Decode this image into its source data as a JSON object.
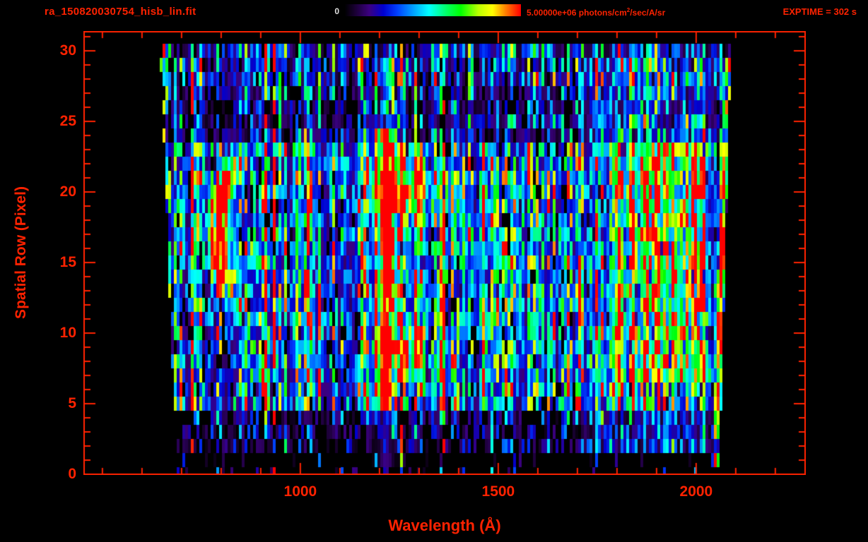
{
  "header": {
    "filename": "ra_150820030754_hisb_lin.fit",
    "colorbar_min": "0",
    "colorbar_max": {
      "prefix": "5.00000e+06 photons/cm",
      "sup": "2",
      "suffix": "/sec/A/sr"
    },
    "exptime": "EXPTIME = 302 s"
  },
  "colors": {
    "accent_red": "#ff2200",
    "text_white": "#e0e0e0",
    "background": "#000000"
  },
  "chart_data": {
    "type": "heatmap",
    "title": "ra_150820030754_hisb_lin.fit",
    "xlabel": "Wavelength (Å)",
    "ylabel": "Spatial Row (Pixel)",
    "xlim": [
      452,
      2277
    ],
    "ylim": [
      0,
      31.4
    ],
    "x_major_ticks": [
      1000,
      1500,
      2000
    ],
    "x_minor_step": 100,
    "y_major_ticks": [
      0,
      5,
      10,
      15,
      20,
      25,
      30
    ],
    "y_minor_step": 1,
    "colorbar": {
      "min": 0,
      "max": 5000000,
      "units": "photons/cm^2/sec/A/sr"
    },
    "exposure_time_s": 302,
    "data_extent": {
      "left_base": 688,
      "left_slope": 1.4,
      "right_base": 2058,
      "right_slope": 1.0,
      "row_min": 0,
      "row_max": 30
    },
    "colormap_stops": [
      [
        0.0,
        "#000000"
      ],
      [
        0.06,
        "#1a0033"
      ],
      [
        0.14,
        "#3b0080"
      ],
      [
        0.22,
        "#0000d0"
      ],
      [
        0.3,
        "#0040ff"
      ],
      [
        0.4,
        "#00aaff"
      ],
      [
        0.48,
        "#00ffff"
      ],
      [
        0.58,
        "#00ff66"
      ],
      [
        0.66,
        "#00ff00"
      ],
      [
        0.76,
        "#baff00"
      ],
      [
        0.84,
        "#ffff00"
      ],
      [
        0.92,
        "#ff7700"
      ],
      [
        1.0,
        "#ff0000"
      ]
    ],
    "features": [
      {
        "kind": "arc",
        "x": 795,
        "row_center": 17.3,
        "row_half": 5.2,
        "curve": 1.35,
        "width": 26,
        "amp": 1.0,
        "label": "bright crescent ~800 A"
      },
      {
        "kind": "line",
        "x": 1216,
        "rows": [
          5,
          24
        ],
        "width": 13,
        "amp": 0.95,
        "wing_amp": 0.3,
        "wing_width": 40,
        "bleed": 0.15,
        "label": "Lyman-alpha 1216"
      },
      {
        "kind": "blob",
        "x": 1262,
        "row": 20.2,
        "rw": 70,
        "rh": 1.7,
        "amp": 0.5
      },
      {
        "kind": "blob",
        "x": 1256,
        "row": 8.6,
        "rw": 55,
        "rh": 1.5,
        "amp": 0.45
      },
      {
        "kind": "line",
        "x": 989,
        "rows": [
          7,
          23
        ],
        "width": 9,
        "amp": 0.28
      },
      {
        "kind": "line",
        "x": 1026,
        "rows": [
          6,
          24
        ],
        "width": 10,
        "amp": 0.38,
        "label": "Lyman-beta 1026"
      },
      {
        "kind": "line",
        "x": 1304,
        "rows": [
          6,
          23
        ],
        "width": 12,
        "amp": 0.5,
        "label": "OI 1304"
      },
      {
        "kind": "line",
        "x": 1356,
        "rows": [
          8,
          22
        ],
        "width": 8,
        "amp": 0.3
      },
      {
        "kind": "line",
        "x": 1412,
        "rows": [
          8,
          22
        ],
        "width": 8,
        "amp": 0.25
      },
      {
        "kind": "line",
        "x": 1464,
        "rows": [
          5,
          23
        ],
        "width": 10,
        "amp": 0.42
      },
      {
        "kind": "line",
        "x": 1495,
        "rows": [
          7,
          22
        ],
        "width": 9,
        "amp": 0.3
      },
      {
        "kind": "line",
        "x": 1550,
        "rows": [
          8,
          21
        ],
        "width": 8,
        "amp": 0.22
      },
      {
        "kind": "band",
        "x0": 1690,
        "x1": 2060,
        "rows": [
          2,
          29
        ],
        "amp": 0.16
      },
      {
        "kind": "band",
        "x0": 1830,
        "x1": 2052,
        "rows": [
          7,
          23
        ],
        "amp": 0.34
      },
      {
        "kind": "line",
        "x": 1800,
        "rows": [
          5,
          23
        ],
        "width": 13,
        "amp": 0.34
      },
      {
        "kind": "edge",
        "width": 7,
        "amp": 0.85,
        "rows": [
          1,
          29
        ],
        "label": "bright detector edge ~2060"
      }
    ]
  }
}
